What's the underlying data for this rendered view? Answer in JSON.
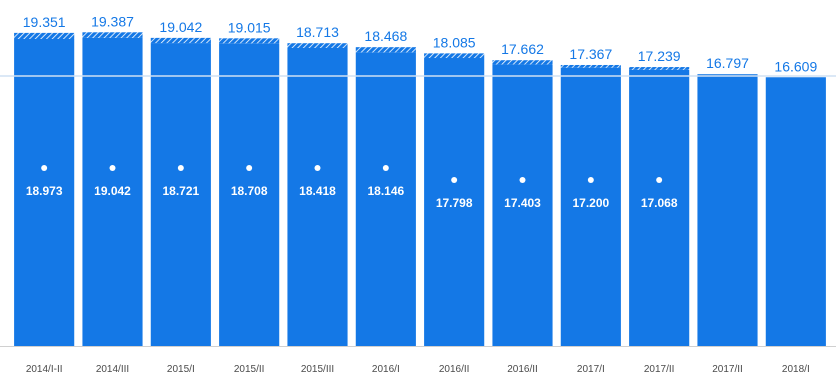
{
  "chart_data": {
    "type": "bar",
    "categories": [
      "2014/I-II",
      "2014/III",
      "2015/I",
      "2015/II",
      "2015/III",
      "2016/I",
      "2016/II",
      "2016/II",
      "2017/I",
      "2017/II",
      "2017/II",
      "2018/I"
    ],
    "series": [
      {
        "values": [
          19.351,
          19.387,
          19.042,
          19.015,
          18.713,
          18.468,
          18.085,
          17.662,
          17.367,
          17.239,
          16.797,
          16.609
        ]
      },
      {
        "values": [
          18.973,
          19.042,
          18.721,
          18.708,
          18.418,
          18.146,
          17.798,
          17.403,
          17.2,
          17.068,
          null,
          null
        ]
      }
    ],
    "top_labels": [
      "19.351",
      "19.387",
      "19.042",
      "19.015",
      "18.713",
      "18.468",
      "18.085",
      "17.662",
      "17.367",
      "17.239",
      "16.797",
      "16.609"
    ],
    "inner_labels": [
      "18.973",
      "19.042",
      "18.721",
      "18.708",
      "18.418",
      "18.146",
      "17.798",
      "17.403",
      "17.200",
      "17.068",
      "",
      ""
    ],
    "title": "",
    "xlabel": "",
    "ylabel": "",
    "ylim": [
      0,
      19.9
    ],
    "grid": false,
    "colors": {
      "bar": "#1478e6",
      "top_label": "#1478e6",
      "inner_label": "#ffffff",
      "reference_line": "#cfe0f3"
    }
  }
}
